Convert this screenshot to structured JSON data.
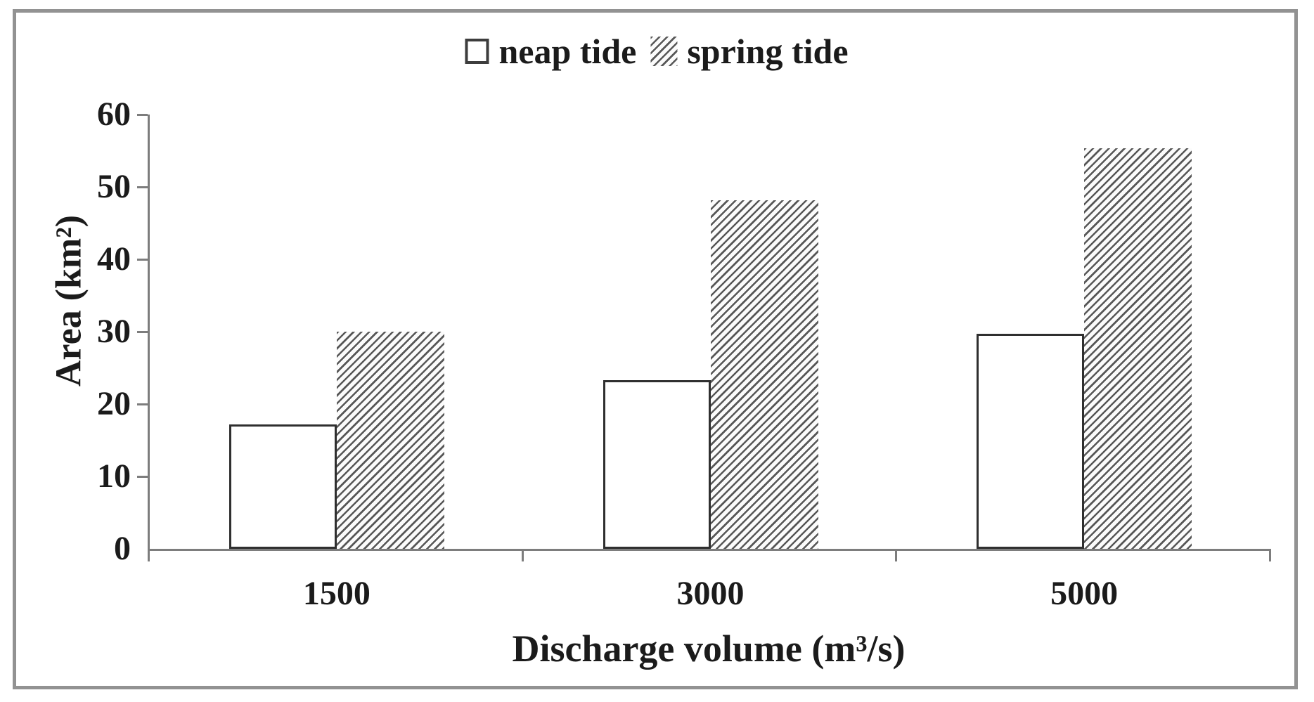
{
  "chart_data": {
    "type": "bar",
    "title": "",
    "categories": [
      "1500",
      "3000",
      "5000"
    ],
    "series": [
      {
        "name": "neap tide",
        "style": "open",
        "values": [
          17.2,
          23.3,
          29.7
        ]
      },
      {
        "name": "spring tide",
        "style": "hatched",
        "values": [
          30.0,
          48.2,
          55.3
        ]
      }
    ],
    "xlabel": "Discharge volume (m³/s)",
    "ylabel": "Area (km²)",
    "ylim": [
      0,
      60
    ],
    "yticks": [
      0,
      10,
      20,
      30,
      40,
      50,
      60
    ],
    "legend_position": "top-center",
    "grid": false,
    "colors": {
      "axis": "#7d7d7d",
      "text": "#1b1b1b",
      "bar_border": "#2f2f2f",
      "hatch_line": "#575757",
      "frame_border": "#929292",
      "background": "#ffffff"
    }
  }
}
